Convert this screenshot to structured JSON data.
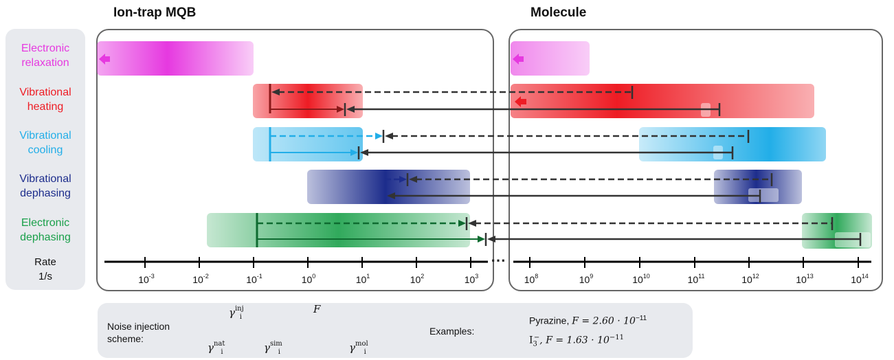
{
  "titles": {
    "left": "Ion-trap MQB",
    "right": "Molecule"
  },
  "rows": [
    {
      "label_line1": "Electronic",
      "label_line2": "relaxation",
      "color": "#e639e0"
    },
    {
      "label_line1": "Vibrational",
      "label_line2": "heating",
      "color": "#ee1c24"
    },
    {
      "label_line1": "Vibrational",
      "label_line2": "cooling",
      "color": "#22aee8"
    },
    {
      "label_line1": "Vibrational",
      "label_line2": "dephasing",
      "color": "#1d2d8c"
    },
    {
      "label_line1": "Electronic",
      "label_line2": "dephasing",
      "color": "#1aa04a"
    }
  ],
  "axis": {
    "label_line1": "Rate",
    "label_line2": "1/s",
    "left_ticks": [
      {
        "base": "10",
        "exp": "-3"
      },
      {
        "base": "10",
        "exp": "-2"
      },
      {
        "base": "10",
        "exp": "-1"
      },
      {
        "base": "10",
        "exp": "0"
      },
      {
        "base": "10",
        "exp": "1"
      },
      {
        "base": "10",
        "exp": "2"
      },
      {
        "base": "10",
        "exp": "3"
      }
    ],
    "right_ticks": [
      {
        "base": "10",
        "exp": "8"
      },
      {
        "base": "10",
        "exp": "9"
      },
      {
        "base": "10",
        "exp": "10"
      },
      {
        "base": "10",
        "exp": "11"
      },
      {
        "base": "10",
        "exp": "12"
      },
      {
        "base": "10",
        "exp": "13"
      },
      {
        "base": "10",
        "exp": "14"
      }
    ],
    "break_mark": "⋯"
  },
  "legend": {
    "scheme_line1": "Noise injection",
    "scheme_line2": "scheme:",
    "gamma": "γ",
    "sub_i": "i",
    "sup_inj": "inj",
    "sup_nat": "nat",
    "sup_sim": "sim",
    "sup_mol": "mol",
    "F_symbol": "F",
    "examples_label": "Examples:",
    "example1_name": "Pyrazine,",
    "example1_formula": "F = 2.60 · 10",
    "example1_exp": "−11",
    "example2_name": "I",
    "example2_sub": "3",
    "example2_sup": "−",
    "example2_formula": ", F = 1.63 · 10",
    "example2_exp": "−11"
  }
}
